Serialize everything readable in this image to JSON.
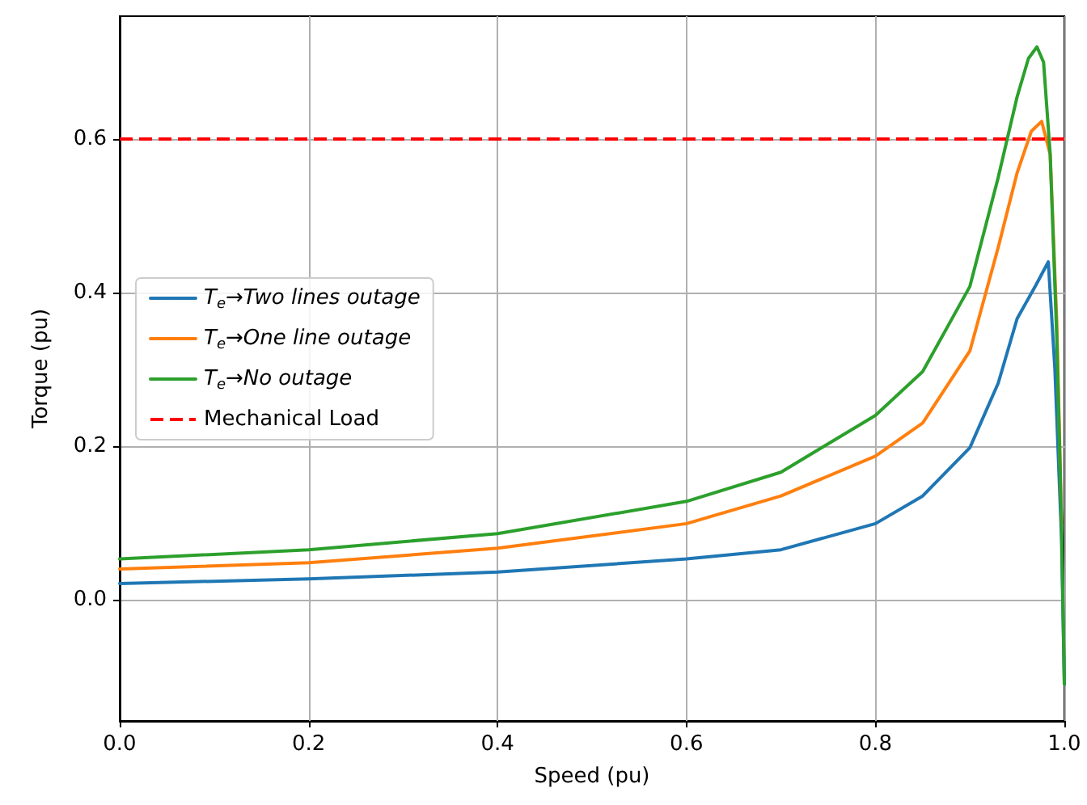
{
  "chart_data": {
    "type": "line",
    "xlabel": "Speed (pu)",
    "ylabel": "Torque (pu)",
    "xlim": [
      0,
      1
    ],
    "xticks": [
      {
        "value": 0,
        "label": "0.0"
      },
      {
        "value": 0.2,
        "label": "0.2"
      },
      {
        "value": 0.4,
        "label": "0.4"
      },
      {
        "value": 0.6,
        "label": "0.6"
      },
      {
        "value": 0.8,
        "label": "0.8"
      },
      {
        "value": 1,
        "label": "1.0"
      }
    ],
    "ylim": [
      -0.158,
      0.76
    ],
    "yticks": [
      {
        "value": 0,
        "label": "0.0"
      },
      {
        "value": 0.2,
        "label": "0.2"
      },
      {
        "value": 0.4,
        "label": "0.4"
      },
      {
        "value": 0.6,
        "label": "0.6"
      }
    ],
    "grid": true,
    "legend": "left",
    "marker": "none",
    "line_style": "solid",
    "series": [
      {
        "name": "T$_{e}$→Two lines outage",
        "color": "#1f77b4",
        "x": [
          0,
          0.2,
          0.4,
          0.6,
          0.7,
          0.8,
          0.85,
          0.9,
          0.93,
          0.95,
          0.97,
          0.983,
          0.99,
          0.997,
          1
        ],
        "values": [
          0.021,
          0.027,
          0.036,
          0.053,
          0.065,
          0.099,
          0.135,
          0.198,
          0.282,
          0.366,
          0.41,
          0.44,
          0.3,
          0.08,
          -0.11
        ]
      },
      {
        "name": "T$_{e}$→One line outage",
        "color": "#ff7f0e",
        "x": [
          0,
          0.2,
          0.4,
          0.6,
          0.7,
          0.8,
          0.85,
          0.9,
          0.93,
          0.95,
          0.965,
          0.976,
          0.985,
          0.992,
          0.997
        ],
        "values": [
          0.04,
          0.048,
          0.067,
          0.099,
          0.135,
          0.187,
          0.23,
          0.324,
          0.459,
          0.556,
          0.61,
          0.623,
          0.58,
          0.36,
          0.1
        ]
      },
      {
        "name": "T$_{e}$→No outage",
        "color": "#2ca02c",
        "x": [
          0,
          0.2,
          0.4,
          0.6,
          0.7,
          0.8,
          0.85,
          0.9,
          0.93,
          0.95,
          0.962,
          0.971,
          0.978,
          0.985,
          0.992,
          0.997,
          1
        ],
        "values": [
          0.053,
          0.065,
          0.086,
          0.128,
          0.166,
          0.24,
          0.297,
          0.408,
          0.55,
          0.655,
          0.705,
          0.72,
          0.7,
          0.58,
          0.34,
          0.1,
          -0.11
        ]
      }
    ],
    "ref_lines": [
      {
        "axis": "y",
        "value": 0.6,
        "label": "Mechanical Load",
        "color": "#ff0000",
        "line_style": "dashed"
      }
    ]
  }
}
